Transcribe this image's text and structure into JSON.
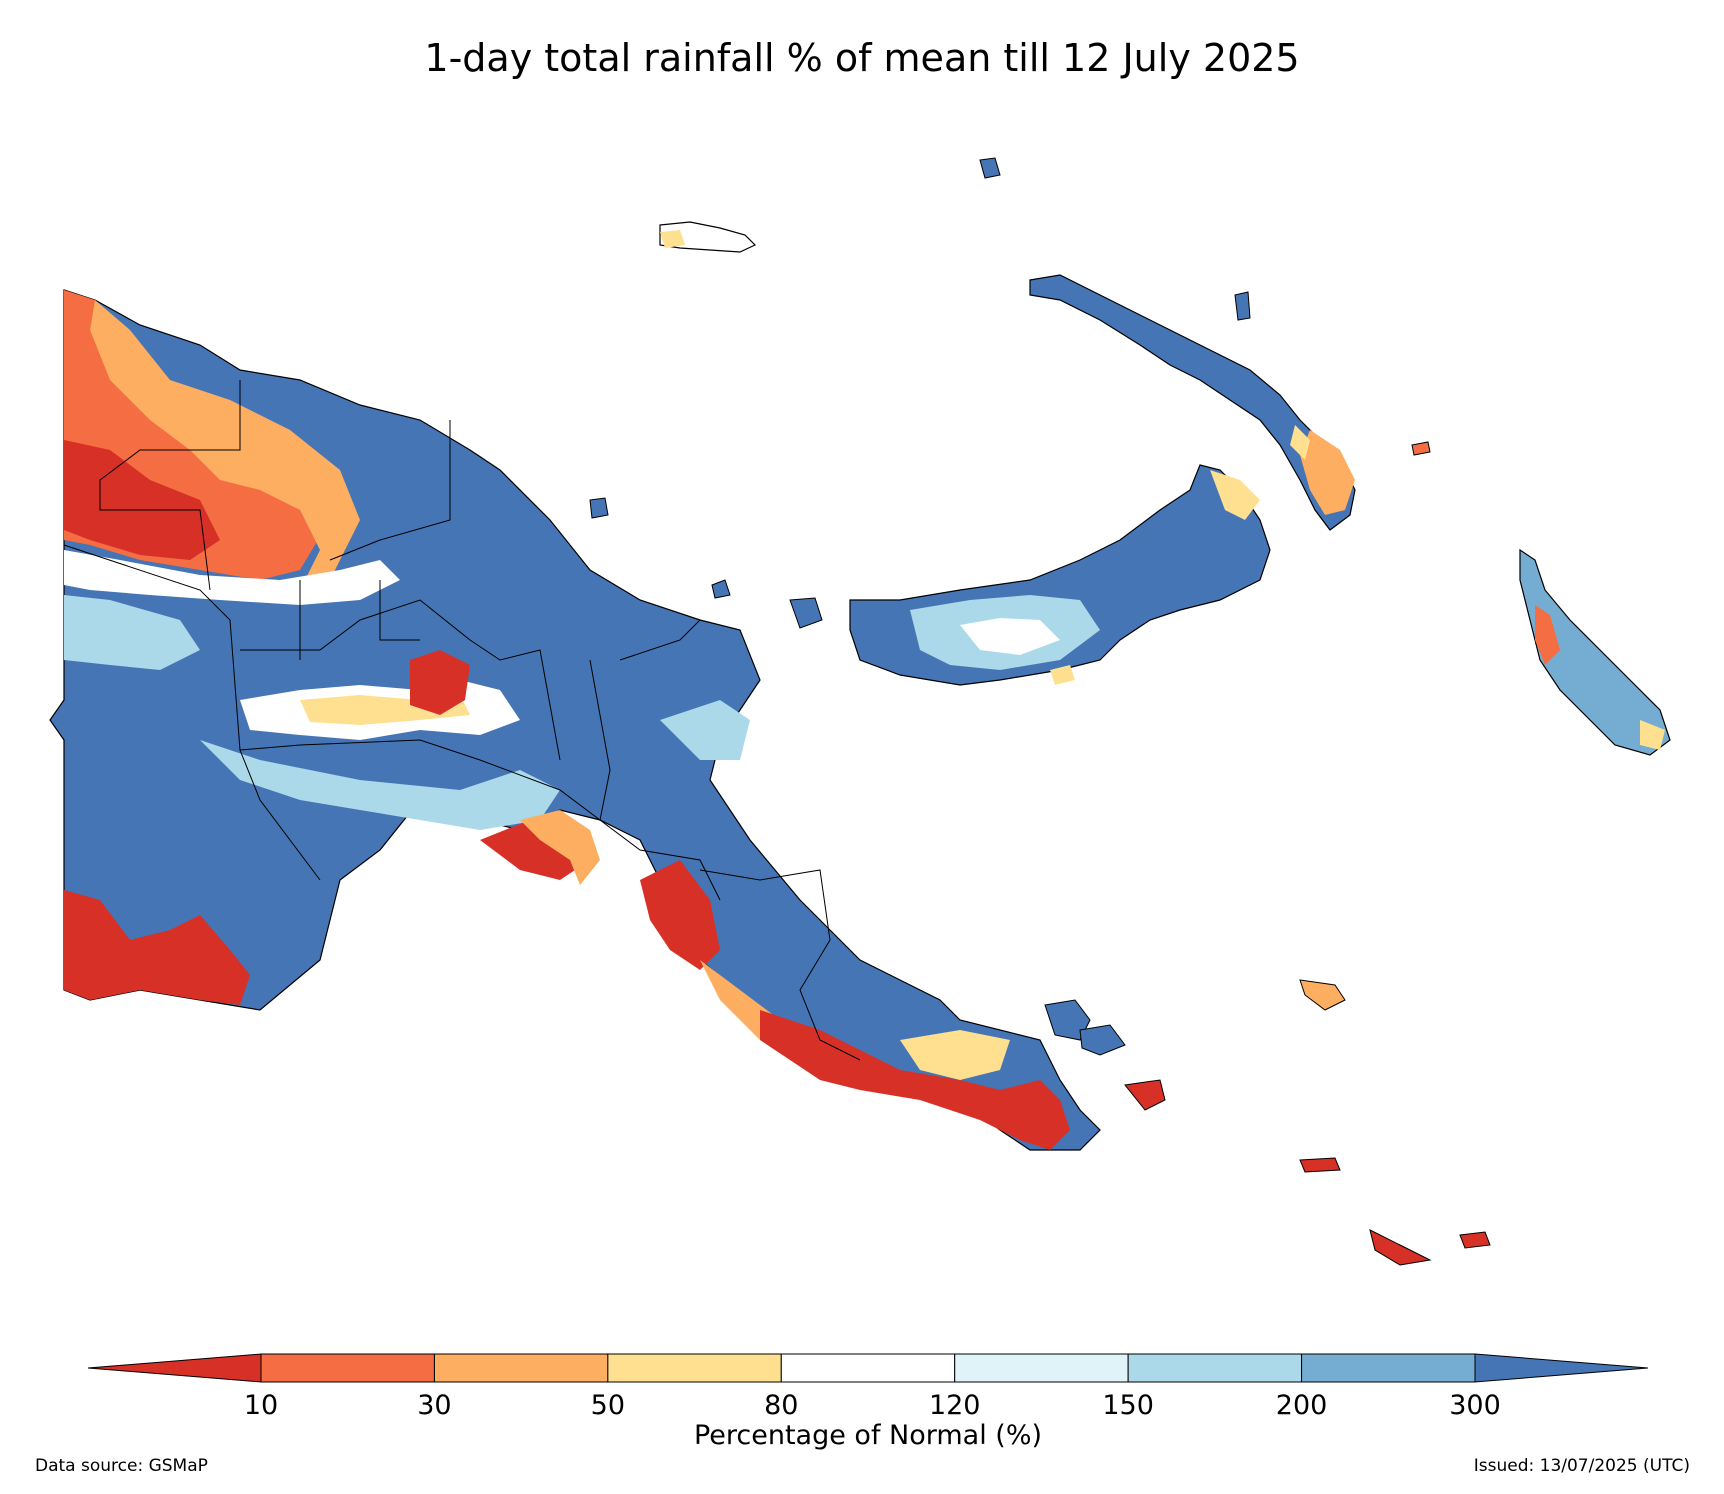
{
  "title": "1-day total rainfall % of mean till 12 July 2025",
  "colorbar": {
    "label": "Percentage of Normal (%)",
    "ticks": [
      "10",
      "30",
      "50",
      "80",
      "120",
      "150",
      "200",
      "300"
    ],
    "colors": {
      "under": "#d73027",
      "bins": [
        "#f46d43",
        "#fdae61",
        "#fee090",
        "#ffffff",
        "#e0f3f8",
        "#abd9e9",
        "#74add1"
      ],
      "over": "#4575b4"
    }
  },
  "footer": {
    "source": "Data source: GSMaP",
    "issued": "Issued: 13/07/2025 (UTC)"
  }
}
